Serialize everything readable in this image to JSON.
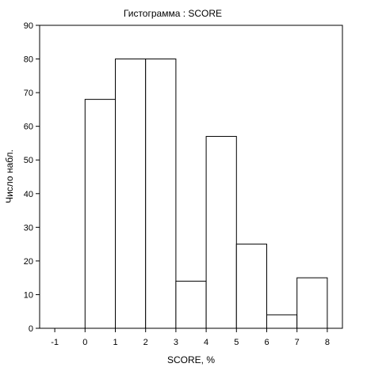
{
  "chart_data": {
    "type": "bar",
    "title": "Гистограмма : SCORE",
    "xlabel": "SCORE, %",
    "ylabel": "Число набл.",
    "x_ticks": [
      "-1",
      "0",
      "1",
      "2",
      "3",
      "4",
      "5",
      "6",
      "7",
      "8"
    ],
    "y_ticks": [
      "0",
      "10",
      "20",
      "30",
      "40",
      "50",
      "60",
      "70",
      "80",
      "90"
    ],
    "xlim": [
      -1.5,
      8.5
    ],
    "ylim": [
      0,
      90
    ],
    "bins": [
      {
        "from": 0,
        "to": 1,
        "value": 68
      },
      {
        "from": 1,
        "to": 2,
        "value": 80
      },
      {
        "from": 2,
        "to": 3,
        "value": 80
      },
      {
        "from": 3,
        "to": 4,
        "value": 14
      },
      {
        "from": 4,
        "to": 5,
        "value": 57
      },
      {
        "from": 5,
        "to": 6,
        "value": 25
      },
      {
        "from": 6,
        "to": 7,
        "value": 4
      },
      {
        "from": 7,
        "to": 8,
        "value": 15
      }
    ],
    "grid": false,
    "legend": "none",
    "bar_fill": "#ffffff",
    "bar_stroke": "#000000"
  }
}
